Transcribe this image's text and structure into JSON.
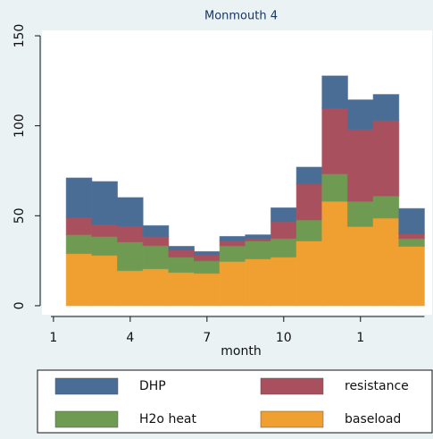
{
  "chart_data": {
    "type": "stacked-bar",
    "title": "Monmouth 4",
    "x_label": "month",
    "x": [
      2,
      3,
      4,
      5,
      6,
      7,
      8,
      9,
      10,
      11,
      12,
      13,
      14,
      15
    ],
    "series": [
      {
        "name": "DHP",
        "color": "#4a6d96",
        "values": [
          22,
          24,
          16,
          6,
          2,
          1.6,
          2.6,
          2,
          7.7,
          9.3,
          18,
          16.4,
          14.4,
          14
        ]
      },
      {
        "name": "resistance",
        "color": "#a8505e",
        "values": [
          9.5,
          6.5,
          8.6,
          5,
          4,
          3.5,
          2.6,
          1.4,
          9.3,
          20,
          36.4,
          40,
          42,
          2.6
        ]
      },
      {
        "name": "H2o heat",
        "color": "#6f9a52",
        "values": [
          10.5,
          10.5,
          16,
          13,
          8.5,
          7,
          8.7,
          10,
          10.4,
          11.7,
          15.3,
          14,
          12.3,
          4.4
        ]
      },
      {
        "name": "baseload",
        "color": "#f0a030",
        "values": [
          29,
          28,
          19.5,
          20.5,
          18.5,
          18,
          24.6,
          26,
          27,
          36,
          58,
          44,
          48.7,
          33
        ]
      }
    ],
    "xlim": [
      0.55,
      15.8
    ],
    "xticks": [
      1,
      4,
      7,
      10,
      {
        "value": 13,
        "label": "1"
      }
    ],
    "ylim": [
      -5,
      153
    ],
    "yticks": [
      0,
      50,
      100,
      150
    ]
  }
}
